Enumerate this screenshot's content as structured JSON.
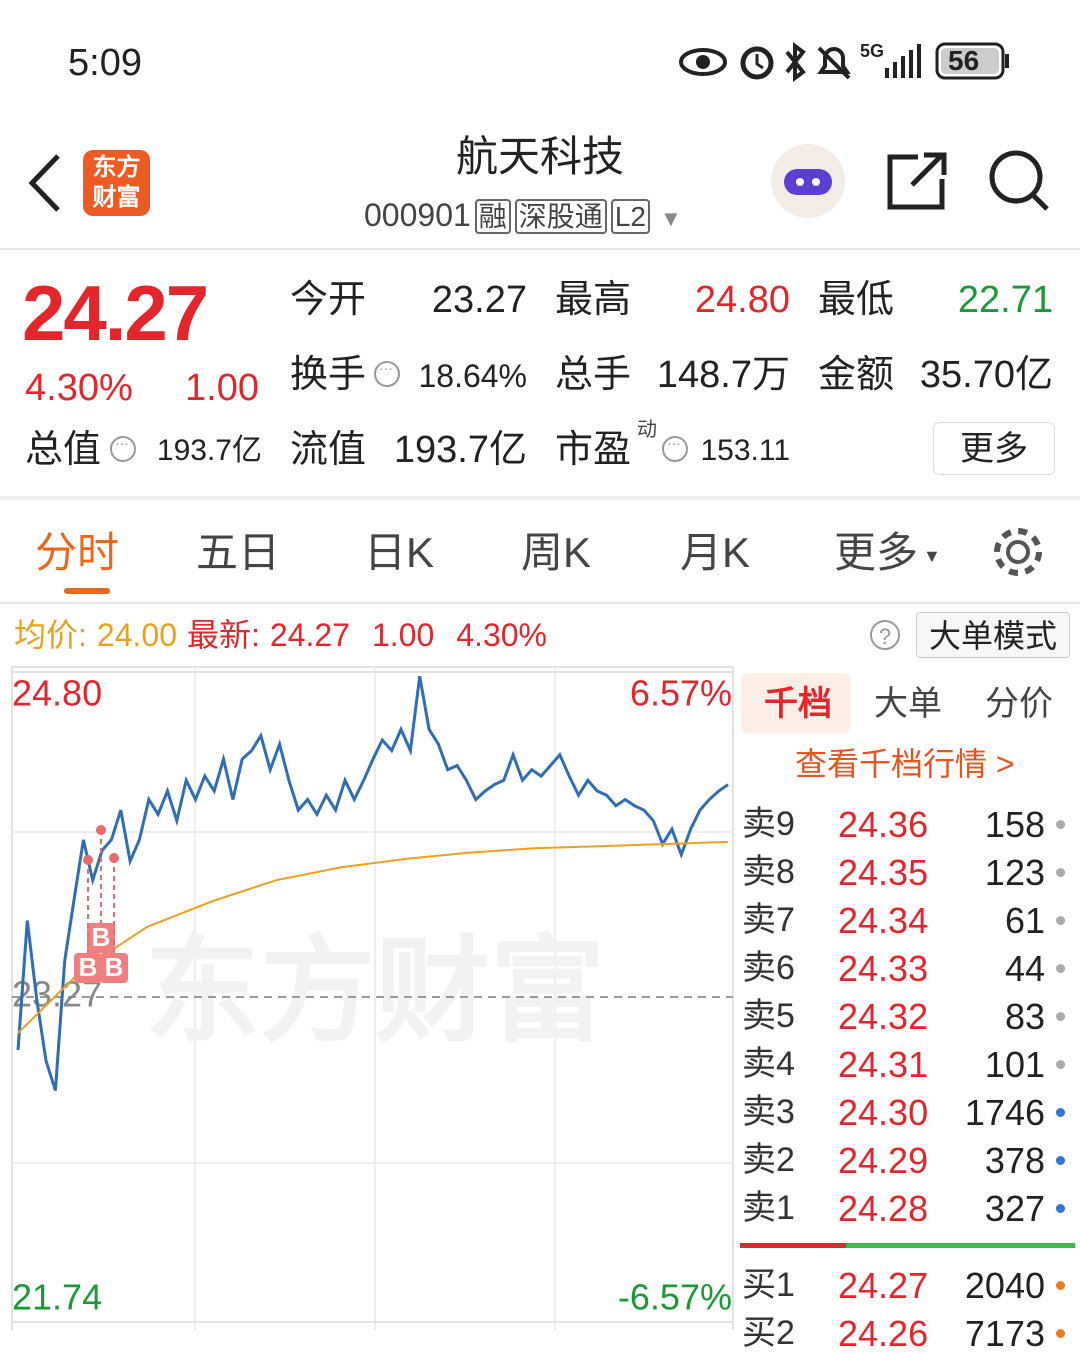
{
  "status_bar": {
    "time": "5:09",
    "network": "5G",
    "battery": "56"
  },
  "header": {
    "logo": [
      "东方",
      "财富"
    ],
    "title": "航天科技",
    "code": "000901",
    "tags": [
      "融",
      "深股通",
      "L2"
    ]
  },
  "quote": {
    "price": "24.27",
    "change_pct": "4.30%",
    "change": "1.00",
    "fields": [
      {
        "label": "今开",
        "value": "23.27"
      },
      {
        "label": "最高",
        "value": "24.80"
      },
      {
        "label": "最低",
        "value": "22.71"
      },
      {
        "label": "换手",
        "value": "18.64%"
      },
      {
        "label": "总手",
        "value": "148.7万"
      },
      {
        "label": "金额",
        "value": "35.70亿"
      },
      {
        "label": "总值",
        "value": "193.7亿"
      },
      {
        "label": "流值",
        "value": "193.7亿"
      },
      {
        "label": "市盈",
        "sup": "动",
        "value": "153.11"
      }
    ],
    "more": "更多"
  },
  "tabs": [
    "分时",
    "五日",
    "日K",
    "周K",
    "月K",
    "更多"
  ],
  "info_bar": {
    "avg_label": "均价:",
    "avg": "24.00",
    "latest_label": "最新:",
    "latest": "24.27",
    "change": "1.00",
    "change_pct": "4.30%",
    "mode": "大单模式"
  },
  "chart_data": {
    "type": "line",
    "watermark": "东方财富",
    "ylim": [
      21.74,
      24.8
    ],
    "yticks": [
      {
        "value": 24.8,
        "label": "24.80"
      },
      {
        "value": 23.27,
        "label": "23.27"
      },
      {
        "value": 21.74,
        "label": "21.74"
      }
    ],
    "y2lim": [
      -6.57,
      6.57
    ],
    "y2ticks": [
      {
        "value": 6.57,
        "label": "6.57%"
      },
      {
        "value": -6.57,
        "label": "-6.57%"
      }
    ],
    "annotations": [
      "B",
      "B",
      "B"
    ],
    "series": [
      {
        "name": "最新",
        "color": "#2f6db5",
        "values": [
          23.02,
          23.63,
          23.26,
          22.97,
          22.83,
          23.44,
          23.73,
          24.01,
          23.82,
          23.96,
          24.01,
          24.15,
          23.91,
          24.01,
          24.2,
          24.13,
          24.24,
          24.1,
          24.29,
          24.2,
          24.31,
          24.24,
          24.39,
          24.2,
          24.39,
          24.43,
          24.5,
          24.34,
          24.46,
          24.29,
          24.15,
          24.2,
          24.13,
          24.22,
          24.15,
          24.29,
          24.2,
          24.29,
          24.39,
          24.48,
          24.43,
          24.53,
          24.43,
          24.78,
          24.53,
          24.46,
          24.34,
          24.36,
          24.29,
          24.2,
          24.24,
          24.27,
          24.29,
          24.41,
          24.29,
          24.34,
          24.31,
          24.36,
          24.41,
          24.31,
          24.22,
          24.29,
          24.24,
          24.22,
          24.17,
          24.2,
          24.17,
          24.15,
          24.1,
          23.99,
          24.06,
          23.94,
          24.06,
          24.15,
          24.2,
          24.24,
          24.27
        ]
      },
      {
        "name": "均价",
        "color": "#f0a020",
        "values": [
          23.1,
          23.4,
          23.6,
          23.72,
          23.82,
          23.88,
          23.92,
          23.95,
          23.97,
          23.98,
          23.99,
          24.0
        ]
      }
    ]
  },
  "order_book": {
    "tabs": [
      "千档",
      "大单",
      "分价"
    ],
    "link": "查看千档行情 >",
    "asks": [
      {
        "label": "卖9",
        "price": "24.36",
        "volume": "158"
      },
      {
        "label": "卖8",
        "price": "24.35",
        "volume": "123"
      },
      {
        "label": "卖7",
        "price": "24.34",
        "volume": "61"
      },
      {
        "label": "卖6",
        "price": "24.33",
        "volume": "44"
      },
      {
        "label": "卖5",
        "price": "24.32",
        "volume": "83"
      },
      {
        "label": "卖4",
        "price": "24.31",
        "volume": "101"
      },
      {
        "label": "卖3",
        "price": "24.30",
        "volume": "1746"
      },
      {
        "label": "卖2",
        "price": "24.29",
        "volume": "378"
      },
      {
        "label": "卖1",
        "price": "24.28",
        "volume": "327"
      }
    ],
    "bids": [
      {
        "label": "买1",
        "price": "24.27",
        "volume": "2040"
      },
      {
        "label": "买2",
        "price": "24.26",
        "volume": "7173"
      }
    ]
  }
}
